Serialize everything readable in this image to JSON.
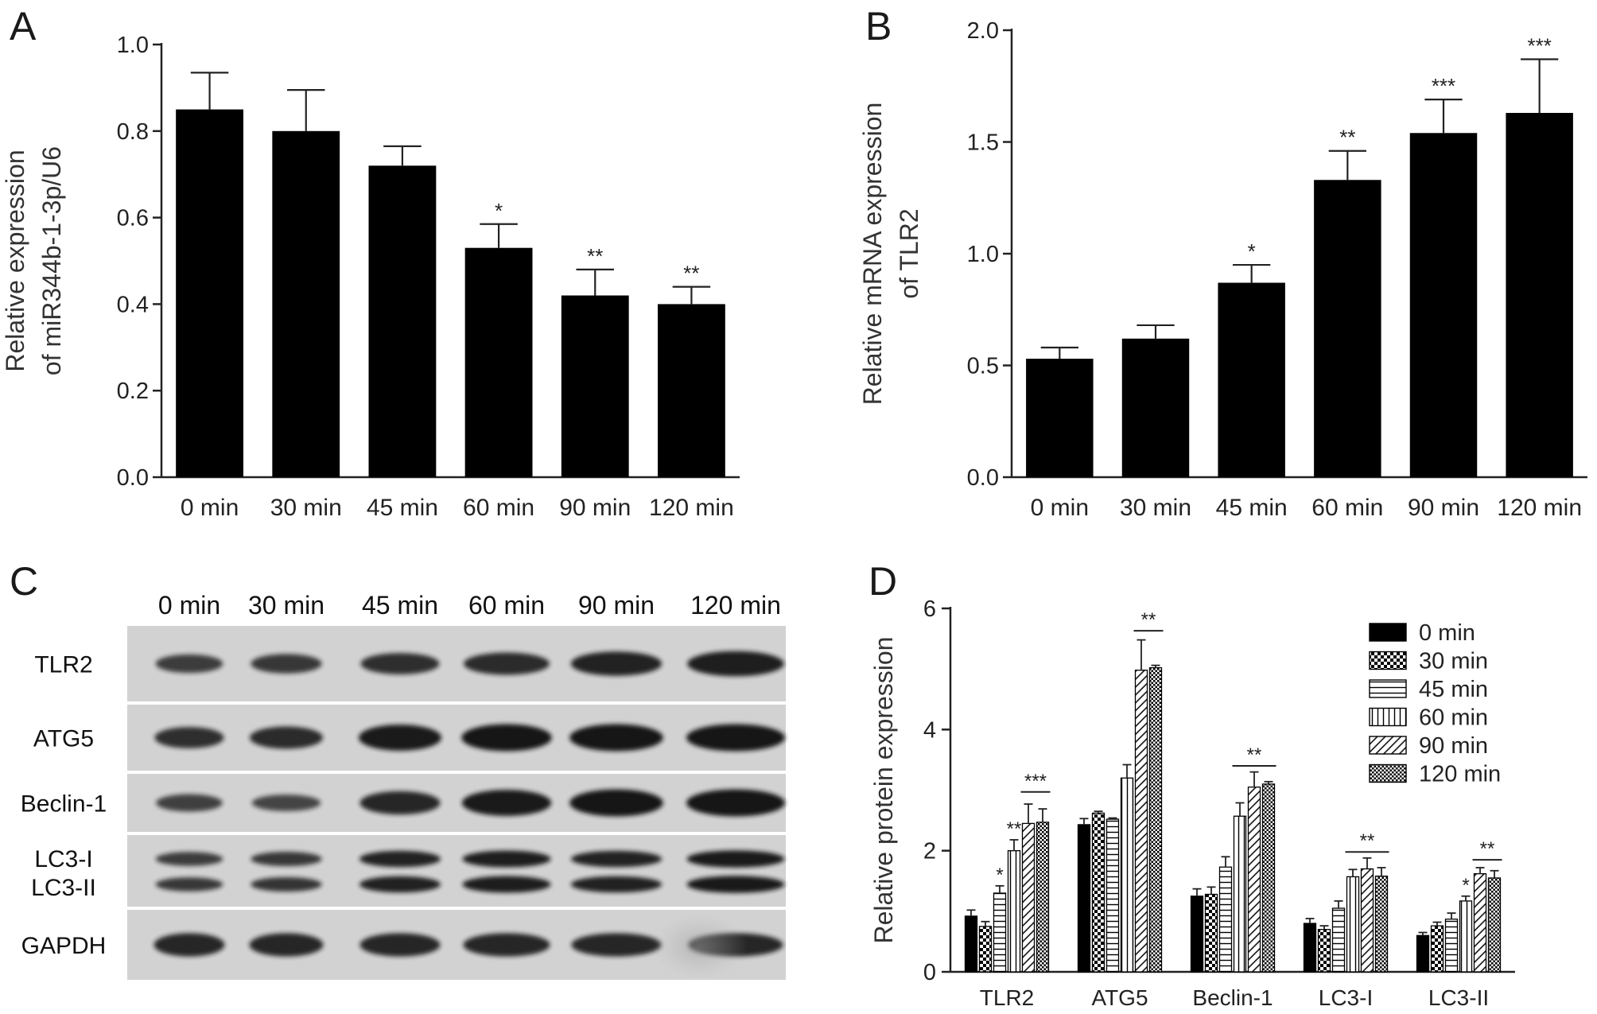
{
  "panels": {
    "A": {
      "letter": "A"
    },
    "B": {
      "letter": "B"
    },
    "C": {
      "letter": "C"
    },
    "D": {
      "letter": "D"
    }
  },
  "blot": {
    "columns": [
      "0 min",
      "30 min",
      "45 min",
      "60 min",
      "90 min",
      "120 min"
    ],
    "rows": [
      {
        "label": "TLR2",
        "intensity": [
          0.55,
          0.6,
          0.7,
          0.75,
          0.85,
          0.9
        ]
      },
      {
        "label": "ATG5",
        "intensity": [
          0.7,
          0.75,
          0.95,
          1.0,
          1.0,
          1.0
        ]
      },
      {
        "label": "Beclin-1",
        "intensity": [
          0.5,
          0.45,
          0.8,
          0.95,
          1.0,
          1.0
        ]
      },
      {
        "label": "LC3-I",
        "label2": "LC3-II",
        "intensity": [
          0.55,
          0.6,
          0.85,
          0.9,
          0.85,
          0.95
        ]
      },
      {
        "label": "GAPDH",
        "intensity": [
          0.8,
          0.8,
          0.8,
          0.8,
          0.8,
          0.8
        ]
      }
    ]
  },
  "chart_data": [
    {
      "panel": "A",
      "type": "bar",
      "categories": [
        "0 min",
        "30 min",
        "45 min",
        "60 min",
        "90 min",
        "120 min"
      ],
      "values": [
        0.85,
        0.8,
        0.72,
        0.53,
        0.42,
        0.4
      ],
      "errors": [
        0.085,
        0.095,
        0.045,
        0.055,
        0.06,
        0.04
      ],
      "significance": [
        "",
        "",
        "",
        "*",
        "**",
        "**"
      ],
      "ylabel_lines": [
        "Relative expression",
        "of miR344b-1-3p/U6"
      ],
      "ylim": [
        0,
        1.0
      ],
      "yticks": [
        0.0,
        0.2,
        0.4,
        0.6,
        0.8,
        1.0
      ],
      "ytick_labels": [
        "0.0",
        "0.2",
        "0.4",
        "0.6",
        "0.8",
        "1.0"
      ],
      "bar_color": "#000000"
    },
    {
      "panel": "B",
      "type": "bar",
      "categories": [
        "0 min",
        "30 min",
        "45 min",
        "60 min",
        "90 min",
        "120 min"
      ],
      "values": [
        0.53,
        0.62,
        0.87,
        1.33,
        1.54,
        1.63
      ],
      "errors": [
        0.05,
        0.06,
        0.08,
        0.13,
        0.15,
        0.24
      ],
      "significance": [
        "",
        "",
        "*",
        "**",
        "***",
        "***"
      ],
      "ylabel_lines": [
        "Relative mRNA expression",
        "of TLR2"
      ],
      "ylim": [
        0,
        2.0
      ],
      "yticks": [
        0.0,
        0.5,
        1.0,
        1.5,
        2.0
      ],
      "ytick_labels": [
        "0.0",
        "0.5",
        "1.0",
        "1.5",
        "2.0"
      ],
      "bar_color": "#000000"
    },
    {
      "panel": "D",
      "type": "bar",
      "categories": [
        "TLR2",
        "ATG5",
        "Beclin-1",
        "LC3-I",
        "LC3-II"
      ],
      "series": [
        {
          "name": "0 min",
          "pattern": "solid",
          "values": [
            0.92,
            2.43,
            1.25,
            0.8,
            0.6
          ],
          "errors": [
            0.1,
            0.1,
            0.12,
            0.08,
            0.05
          ]
        },
        {
          "name": "30 min",
          "pattern": "checker",
          "values": [
            0.75,
            2.62,
            1.28,
            0.7,
            0.76
          ],
          "errors": [
            0.08,
            0.03,
            0.12,
            0.06,
            0.06
          ]
        },
        {
          "name": "45 min",
          "pattern": "hlines",
          "values": [
            1.3,
            2.52,
            1.73,
            1.05,
            0.87
          ],
          "errors": [
            0.12,
            0.02,
            0.17,
            0.12,
            0.1
          ]
        },
        {
          "name": "60 min",
          "pattern": "vlines",
          "values": [
            2.0,
            3.2,
            2.57,
            1.57,
            1.17
          ],
          "errors": [
            0.18,
            0.22,
            0.22,
            0.12,
            0.08
          ]
        },
        {
          "name": "90 min",
          "pattern": "diag",
          "values": [
            2.45,
            4.98,
            3.05,
            1.7,
            1.62
          ],
          "errors": [
            0.32,
            0.5,
            0.25,
            0.18,
            0.1
          ]
        },
        {
          "name": "120 min",
          "pattern": "dots",
          "values": [
            2.47,
            5.02,
            3.1,
            1.58,
            1.55
          ],
          "errors": [
            0.22,
            0.04,
            0.04,
            0.14,
            0.12
          ]
        }
      ],
      "annotations": [
        {
          "category": "TLR2",
          "series": "45 min",
          "text": "*"
        },
        {
          "category": "TLR2",
          "series": "60 min",
          "text": "**"
        },
        {
          "category": "TLR2",
          "from": "90 min",
          "to": "120 min",
          "text": "***",
          "y": 2.97
        },
        {
          "category": "ATG5",
          "from": "90 min",
          "to": "120 min",
          "text": "**",
          "y": 5.63
        },
        {
          "category": "Beclin-1",
          "from": "60 min",
          "to": "120 min",
          "text": "**",
          "y": 3.4
        },
        {
          "category": "LC3-I",
          "from": "60 min",
          "to": "120 min",
          "text": "**",
          "y": 1.98
        },
        {
          "category": "LC3-II",
          "series": "60 min",
          "text": "*"
        },
        {
          "category": "LC3-II",
          "from": "90 min",
          "to": "120 min",
          "text": "**",
          "y": 1.85
        }
      ],
      "ylabel_lines": [
        "Relative protein expression"
      ],
      "ylim": [
        0,
        6
      ],
      "yticks": [
        0,
        2,
        4,
        6
      ],
      "ytick_labels": [
        "0",
        "2",
        "4",
        "6"
      ],
      "legend_position": "top-right"
    }
  ]
}
